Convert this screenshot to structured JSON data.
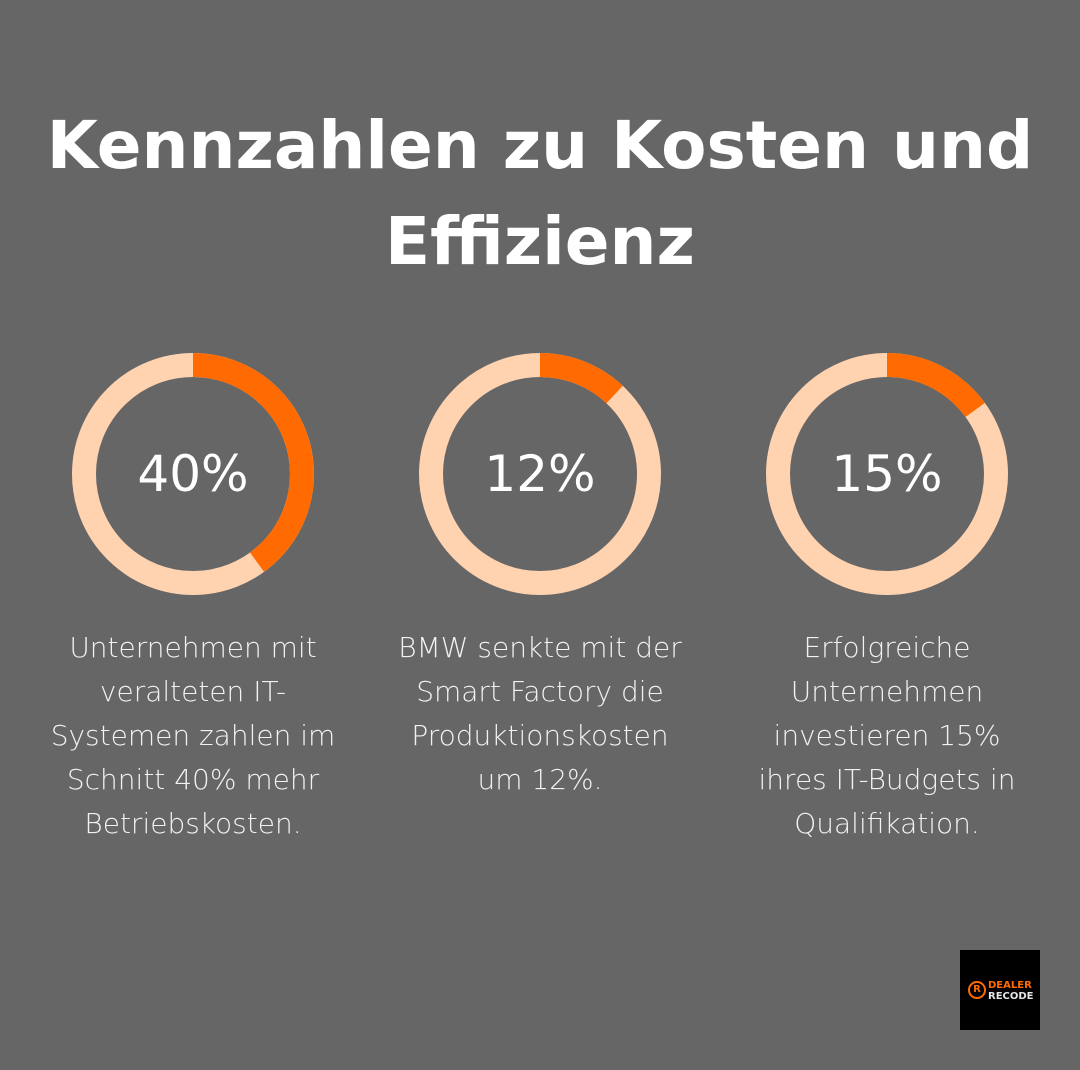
{
  "title": "Kennzahlen zu Kosten und Effizienz",
  "colors": {
    "background": "#666666",
    "accent": "#FF6B00",
    "track": "#FFD2B0"
  },
  "chart_data": [
    {
      "type": "pie",
      "subtype": "donut",
      "value": 40,
      "max": 100,
      "label": "40%",
      "description": "Unternehmen mit veralteten IT-Systemen zahlen im Schnitt 40% mehr Betriebskosten."
    },
    {
      "type": "pie",
      "subtype": "donut",
      "value": 12,
      "max": 100,
      "label": "12%",
      "description": "BMW senkte mit der Smart Factory die Produktionskosten um 12%."
    },
    {
      "type": "pie",
      "subtype": "donut",
      "value": 15,
      "max": 100,
      "label": "15%",
      "description": "Erfolgreiche Unternehmen investieren 15% ihres IT-Budgets in Qualifikation."
    }
  ],
  "logo": {
    "line1": "DEALER",
    "line2": "RECODE",
    "mark": "R"
  }
}
